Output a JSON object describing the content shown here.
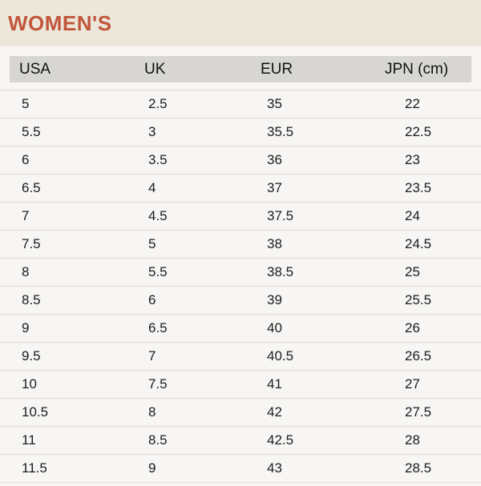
{
  "title": "WOMEN'S",
  "colors": {
    "accent": "#c1563b",
    "band_bg": "#ece7da",
    "header_bg": "#d8d6d2",
    "row_bg": "#f7f6f4",
    "divider": "#dcdad7",
    "text": "#1c1c1c"
  },
  "table": {
    "columns": [
      "USA",
      "UK",
      "EUR",
      "JPN (cm)"
    ],
    "rows": [
      [
        "5",
        "2.5",
        "35",
        "22"
      ],
      [
        "5.5",
        "3",
        "35.5",
        "22.5"
      ],
      [
        "6",
        "3.5",
        "36",
        "23"
      ],
      [
        "6.5",
        "4",
        "37",
        "23.5"
      ],
      [
        "7",
        "4.5",
        "37.5",
        "24"
      ],
      [
        "7.5",
        "5",
        "38",
        "24.5"
      ],
      [
        "8",
        "5.5",
        "38.5",
        "25"
      ],
      [
        "8.5",
        "6",
        "39",
        "25.5"
      ],
      [
        "9",
        "6.5",
        "40",
        "26"
      ],
      [
        "9.5",
        "7",
        "40.5",
        "26.5"
      ],
      [
        "10",
        "7.5",
        "41",
        "27"
      ],
      [
        "10.5",
        "8",
        "42",
        "27.5"
      ],
      [
        "11",
        "8.5",
        "42.5",
        "28"
      ],
      [
        "11.5",
        "9",
        "43",
        "28.5"
      ]
    ]
  }
}
